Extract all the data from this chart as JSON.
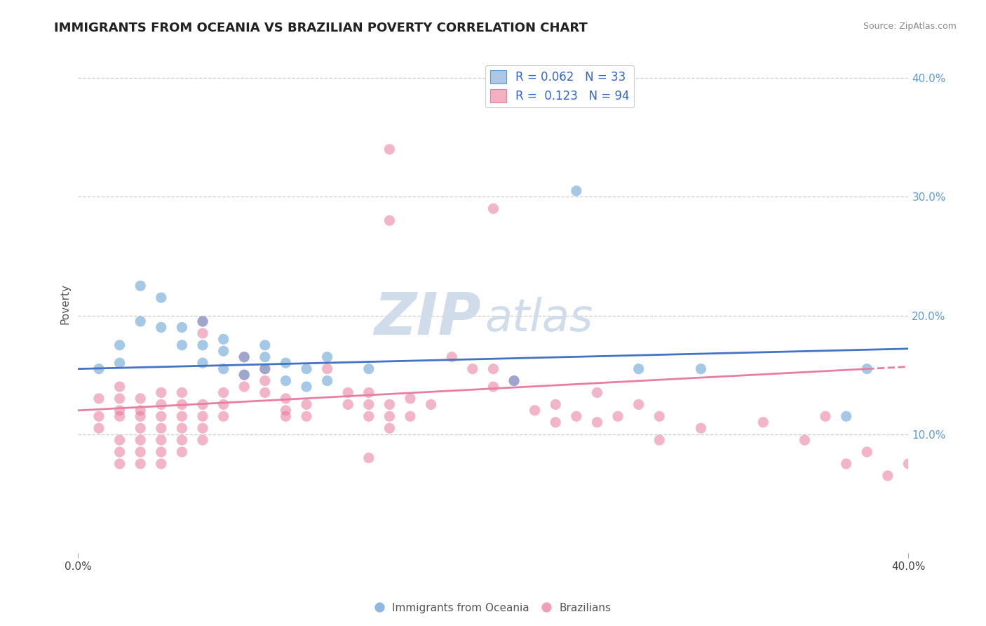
{
  "title": "IMMIGRANTS FROM OCEANIA VS BRAZILIAN POVERTY CORRELATION CHART",
  "source": "Source: ZipAtlas.com",
  "ylabel": "Poverty",
  "xlim": [
    0.0,
    0.4
  ],
  "ylim": [
    0.0,
    0.42
  ],
  "ytick_labels_right": [
    "10.0%",
    "20.0%",
    "30.0%",
    "40.0%"
  ],
  "yticks_right": [
    0.1,
    0.2,
    0.3,
    0.4
  ],
  "legend_labels_bottom": [
    "Immigrants from Oceania",
    "Brazilians"
  ],
  "blue_color": "#5b9bd5",
  "pink_color": "#e8789a",
  "line_blue_color": "#4472c4",
  "line_pink_color": "#e87ea1",
  "blue_scatter": [
    [
      0.01,
      0.155
    ],
    [
      0.02,
      0.16
    ],
    [
      0.02,
      0.175
    ],
    [
      0.03,
      0.195
    ],
    [
      0.03,
      0.225
    ],
    [
      0.04,
      0.19
    ],
    [
      0.04,
      0.215
    ],
    [
      0.05,
      0.175
    ],
    [
      0.05,
      0.19
    ],
    [
      0.06,
      0.16
    ],
    [
      0.06,
      0.175
    ],
    [
      0.06,
      0.195
    ],
    [
      0.07,
      0.155
    ],
    [
      0.07,
      0.17
    ],
    [
      0.07,
      0.18
    ],
    [
      0.08,
      0.15
    ],
    [
      0.08,
      0.165
    ],
    [
      0.09,
      0.155
    ],
    [
      0.09,
      0.165
    ],
    [
      0.09,
      0.175
    ],
    [
      0.1,
      0.145
    ],
    [
      0.1,
      0.16
    ],
    [
      0.11,
      0.14
    ],
    [
      0.11,
      0.155
    ],
    [
      0.12,
      0.145
    ],
    [
      0.12,
      0.165
    ],
    [
      0.14,
      0.155
    ],
    [
      0.21,
      0.145
    ],
    [
      0.24,
      0.305
    ],
    [
      0.27,
      0.155
    ],
    [
      0.3,
      0.155
    ],
    [
      0.37,
      0.115
    ],
    [
      0.38,
      0.155
    ]
  ],
  "pink_scatter": [
    [
      0.01,
      0.13
    ],
    [
      0.01,
      0.115
    ],
    [
      0.01,
      0.105
    ],
    [
      0.02,
      0.115
    ],
    [
      0.02,
      0.13
    ],
    [
      0.02,
      0.14
    ],
    [
      0.02,
      0.12
    ],
    [
      0.02,
      0.095
    ],
    [
      0.02,
      0.085
    ],
    [
      0.02,
      0.075
    ],
    [
      0.03,
      0.13
    ],
    [
      0.03,
      0.12
    ],
    [
      0.03,
      0.115
    ],
    [
      0.03,
      0.105
    ],
    [
      0.03,
      0.095
    ],
    [
      0.03,
      0.085
    ],
    [
      0.03,
      0.075
    ],
    [
      0.04,
      0.135
    ],
    [
      0.04,
      0.125
    ],
    [
      0.04,
      0.115
    ],
    [
      0.04,
      0.105
    ],
    [
      0.04,
      0.095
    ],
    [
      0.04,
      0.085
    ],
    [
      0.04,
      0.075
    ],
    [
      0.05,
      0.135
    ],
    [
      0.05,
      0.125
    ],
    [
      0.05,
      0.115
    ],
    [
      0.05,
      0.105
    ],
    [
      0.05,
      0.095
    ],
    [
      0.05,
      0.085
    ],
    [
      0.06,
      0.195
    ],
    [
      0.06,
      0.185
    ],
    [
      0.06,
      0.125
    ],
    [
      0.06,
      0.115
    ],
    [
      0.06,
      0.105
    ],
    [
      0.06,
      0.095
    ],
    [
      0.07,
      0.135
    ],
    [
      0.07,
      0.125
    ],
    [
      0.07,
      0.115
    ],
    [
      0.08,
      0.165
    ],
    [
      0.08,
      0.15
    ],
    [
      0.08,
      0.14
    ],
    [
      0.09,
      0.155
    ],
    [
      0.09,
      0.145
    ],
    [
      0.09,
      0.135
    ],
    [
      0.1,
      0.13
    ],
    [
      0.1,
      0.12
    ],
    [
      0.1,
      0.115
    ],
    [
      0.11,
      0.125
    ],
    [
      0.11,
      0.115
    ],
    [
      0.12,
      0.155
    ],
    [
      0.13,
      0.135
    ],
    [
      0.13,
      0.125
    ],
    [
      0.14,
      0.135
    ],
    [
      0.14,
      0.125
    ],
    [
      0.14,
      0.115
    ],
    [
      0.14,
      0.08
    ],
    [
      0.15,
      0.125
    ],
    [
      0.15,
      0.115
    ],
    [
      0.15,
      0.105
    ],
    [
      0.15,
      0.28
    ],
    [
      0.16,
      0.13
    ],
    [
      0.16,
      0.115
    ],
    [
      0.17,
      0.125
    ],
    [
      0.18,
      0.165
    ],
    [
      0.19,
      0.155
    ],
    [
      0.2,
      0.14
    ],
    [
      0.2,
      0.155
    ],
    [
      0.21,
      0.145
    ],
    [
      0.22,
      0.12
    ],
    [
      0.23,
      0.125
    ],
    [
      0.23,
      0.11
    ],
    [
      0.24,
      0.115
    ],
    [
      0.25,
      0.11
    ],
    [
      0.25,
      0.135
    ],
    [
      0.26,
      0.115
    ],
    [
      0.27,
      0.125
    ],
    [
      0.28,
      0.115
    ],
    [
      0.28,
      0.095
    ],
    [
      0.3,
      0.105
    ],
    [
      0.33,
      0.11
    ],
    [
      0.35,
      0.095
    ],
    [
      0.36,
      0.115
    ],
    [
      0.37,
      0.075
    ],
    [
      0.38,
      0.085
    ],
    [
      0.39,
      0.065
    ],
    [
      0.4,
      0.075
    ],
    [
      0.15,
      0.34
    ],
    [
      0.2,
      0.29
    ]
  ],
  "grid_color": "#cccccc",
  "background_color": "#ffffff",
  "title_fontsize": 13,
  "axis_label_fontsize": 11,
  "tick_fontsize": 11,
  "watermark_color": "#d0dcea",
  "watermark_fontsize": 60,
  "dot_size": 120,
  "dot_alpha": 0.55
}
